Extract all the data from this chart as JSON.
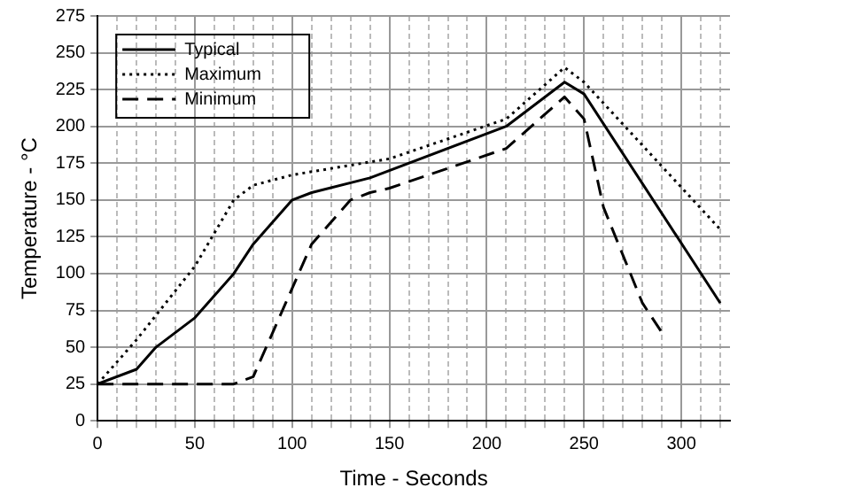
{
  "chart_data": {
    "type": "line",
    "xlabel": "Time - Seconds",
    "ylabel": "Temperature - °C",
    "xlim": [
      0,
      325
    ],
    "ylim": [
      0,
      275
    ],
    "xticks": [
      0,
      {
        "value": 10,
        "label": null
      },
      {
        "value": 20,
        "label": null
      },
      {
        "value": 30,
        "label": null
      },
      {
        "value": 40,
        "label": null
      },
      50,
      {
        "value": 60,
        "label": null
      },
      {
        "value": 70,
        "label": null
      },
      {
        "value": 80,
        "label": null
      },
      {
        "value": 90,
        "label": null
      },
      100,
      {
        "value": 110,
        "label": null
      },
      {
        "value": 120,
        "label": null
      },
      {
        "value": 130,
        "label": null
      },
      {
        "value": 140,
        "label": null
      },
      150,
      {
        "value": 160,
        "label": null
      },
      {
        "value": 170,
        "label": null
      },
      {
        "value": 180,
        "label": null
      },
      {
        "value": 190,
        "label": null
      },
      200,
      {
        "value": 210,
        "label": null
      },
      {
        "value": 220,
        "label": null
      },
      {
        "value": 230,
        "label": null
      },
      {
        "value": 240,
        "label": null
      },
      250,
      {
        "value": 260,
        "label": null
      },
      {
        "value": 270,
        "label": null
      },
      {
        "value": 280,
        "label": null
      },
      {
        "value": 290,
        "label": null
      },
      300,
      {
        "value": 310,
        "label": null
      },
      {
        "value": 320,
        "label": null
      }
    ],
    "yticks": [
      0,
      25,
      50,
      75,
      100,
      125,
      150,
      175,
      200,
      225,
      250,
      275
    ],
    "grid": true,
    "legend": "top left",
    "marker": "none",
    "series": [
      {
        "name": "Typical",
        "color": "#000000",
        "line_style": "solid",
        "x": [
          0,
          20,
          30,
          50,
          70,
          80,
          100,
          110,
          140,
          210,
          240,
          250,
          320
        ],
        "values": [
          25,
          35,
          50,
          70,
          100,
          120,
          150,
          155,
          165,
          200,
          230,
          222,
          80
        ]
      },
      {
        "name": "Maximum",
        "color": "#000000",
        "line_style": "dotted",
        "x": [
          0,
          20,
          50,
          70,
          80,
          100,
          150,
          210,
          240,
          250,
          320
        ],
        "values": [
          25,
          55,
          105,
          150,
          160,
          167,
          178,
          205,
          240,
          230,
          130
        ]
      },
      {
        "name": "Minimum",
        "color": "#000000",
        "line_style": "dashed",
        "x": [
          0,
          70,
          80,
          100,
          110,
          130,
          140,
          150,
          210,
          240,
          250,
          260,
          280,
          290
        ],
        "values": [
          25,
          25,
          30,
          90,
          120,
          150,
          155,
          158,
          185,
          220,
          205,
          145,
          80,
          60
        ]
      }
    ]
  }
}
